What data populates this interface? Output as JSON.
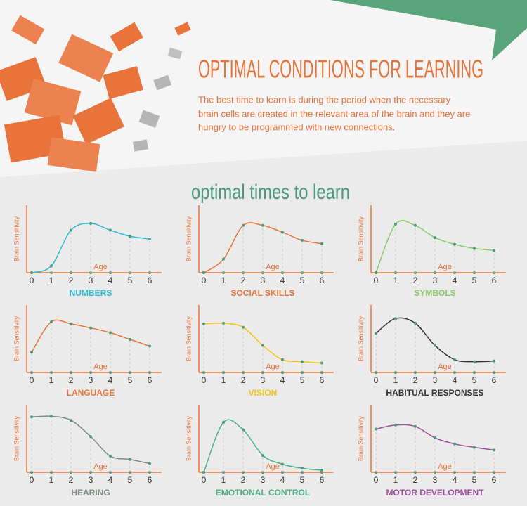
{
  "header": {
    "title": "OPTIMAL CONDITIONS FOR LEARNING",
    "lines": [
      "The best time to learn is during the period when the necessary",
      "brain cells are created in the relevant area of the brain and they are",
      "hungry to be programmed with new connections."
    ],
    "section_title": "optimal times to learn"
  },
  "chart_data": [
    {
      "type": "line",
      "title": "NUMBERS",
      "color": "#2bbcd4",
      "x": [
        0,
        1,
        2,
        3,
        4,
        5,
        6
      ],
      "values": [
        0,
        1,
        6.3,
        7.3,
        6.3,
        5.4,
        5.0
      ],
      "xlim": [
        -0.25,
        6.6
      ],
      "ylim": [
        0,
        10
      ],
      "xticks": [
        0,
        1,
        2,
        3,
        4,
        5,
        6
      ],
      "xlabel": "Age",
      "ylabel": "Brain Sensitivity"
    },
    {
      "type": "line",
      "title": "SOCIAL SKILLS",
      "color": "#e8743b",
      "x": [
        0,
        1,
        2,
        3,
        4,
        5,
        6
      ],
      "values": [
        0,
        2,
        7,
        7,
        6,
        4.8,
        4.3
      ],
      "xlim": [
        -0.25,
        6.6
      ],
      "ylim": [
        0,
        10
      ],
      "xticks": [
        0,
        1,
        2,
        3,
        4,
        5,
        6
      ],
      "xlabel": "Age",
      "ylabel": "Brain Sensitivity"
    },
    {
      "type": "line",
      "title": "SYMBOLS",
      "color": "#8dc86b",
      "x": [
        0,
        1,
        2,
        3,
        4,
        5,
        6
      ],
      "values": [
        0,
        7.2,
        7,
        5.2,
        4.2,
        3.6,
        3.3
      ],
      "xlim": [
        -0.25,
        6.6
      ],
      "ylim": [
        0,
        10
      ],
      "xticks": [
        0,
        1,
        2,
        3,
        4,
        5,
        6
      ],
      "xlabel": "Age",
      "ylabel": "Brain Sensitivity"
    },
    {
      "type": "line",
      "title": "LANGUAGE",
      "color": "#e8743b",
      "x": [
        0,
        1,
        2,
        3,
        4,
        5,
        6
      ],
      "values": [
        3,
        7.5,
        7.2,
        6.6,
        5.9,
        4.9,
        3.9
      ],
      "xlim": [
        -0.25,
        6.6
      ],
      "ylim": [
        0,
        10
      ],
      "xticks": [
        0,
        1,
        2,
        3,
        4,
        5,
        6
      ],
      "xlabel": "Age",
      "ylabel": "Brain Sensitivity"
    },
    {
      "type": "line",
      "title": "VISION",
      "color": "#f5c518",
      "x": [
        0,
        1,
        2,
        3,
        4,
        5,
        6
      ],
      "values": [
        7.2,
        7.3,
        6.7,
        4,
        1.9,
        1.6,
        1.4
      ],
      "xlim": [
        -0.25,
        6.6
      ],
      "ylim": [
        0,
        10
      ],
      "xticks": [
        0,
        1,
        2,
        3,
        4,
        5,
        6
      ],
      "xlabel": "Age",
      "ylabel": "Brain Sensitivity"
    },
    {
      "type": "line",
      "title": "HABITUAL RESPONSES",
      "color": "#333333",
      "x": [
        0,
        1,
        2,
        3,
        4,
        5,
        6
      ],
      "values": [
        5.8,
        8,
        7.3,
        4,
        1.9,
        1.6,
        1.7
      ],
      "xlim": [
        -0.25,
        6.6
      ],
      "ylim": [
        0,
        10
      ],
      "xticks": [
        0,
        1,
        2,
        3,
        4,
        5,
        6
      ],
      "xlabel": "Age",
      "ylabel": "Brain Sensitivity"
    },
    {
      "type": "line",
      "title": "HEARING",
      "color": "#7f8c83",
      "x": [
        0,
        1,
        2,
        3,
        4,
        5,
        6
      ],
      "values": [
        8.2,
        8.3,
        7.7,
        5.3,
        2.4,
        1.9,
        1.3
      ],
      "xlim": [
        -0.25,
        6.6
      ],
      "ylim": [
        0,
        10
      ],
      "xticks": [
        0,
        1,
        2,
        3,
        4,
        5,
        6
      ],
      "xlabel": "Age",
      "ylabel": "Brain Sensitivity"
    },
    {
      "type": "line",
      "title": "EMOTIONAL CONTROL",
      "color": "#4caf86",
      "x": [
        0,
        1,
        2,
        3,
        4,
        5,
        6
      ],
      "values": [
        0,
        7.4,
        6.3,
        2.5,
        1.2,
        0.6,
        0.3
      ],
      "xlim": [
        -0.25,
        6.6
      ],
      "ylim": [
        0,
        10
      ],
      "xticks": [
        0,
        1,
        2,
        3,
        4,
        5,
        6
      ],
      "xlabel": "Age",
      "ylabel": "Brain Sensitivity"
    },
    {
      "type": "line",
      "title": "MOTOR DEVELOPMENT",
      "color": "#9b4f9b",
      "x": [
        0,
        1,
        2,
        3,
        4,
        5,
        6
      ],
      "values": [
        6.4,
        7,
        6.8,
        5.1,
        4.2,
        3.7,
        3.3
      ],
      "xlim": [
        -0.25,
        6.6
      ],
      "ylim": [
        0,
        10
      ],
      "xticks": [
        0,
        1,
        2,
        3,
        4,
        5,
        6
      ],
      "xlabel": "Age",
      "ylabel": "Brain Sensitivity"
    }
  ]
}
